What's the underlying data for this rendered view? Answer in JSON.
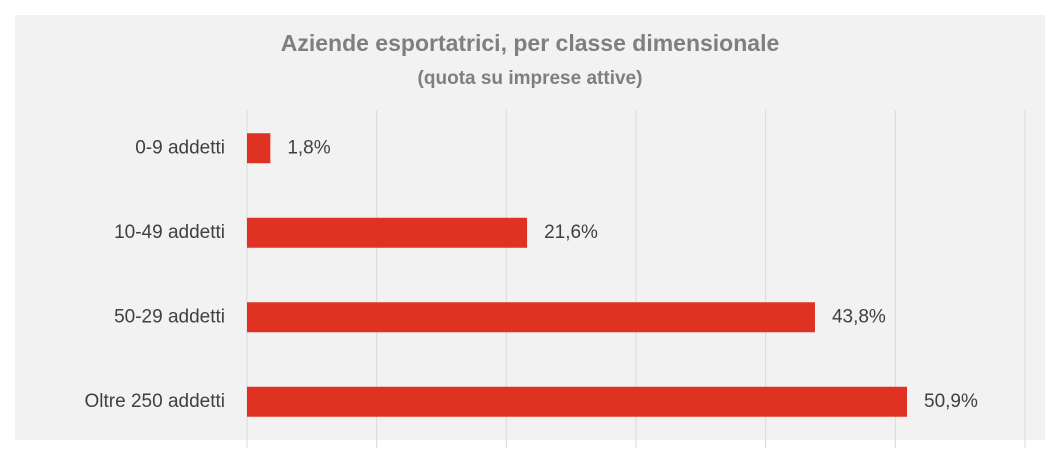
{
  "chart_data": {
    "type": "hbar",
    "title": "Aziende esportatrici, per classe dimensionale",
    "subtitle": "(quota su imprese attive)",
    "categories": [
      "0-9 addetti",
      "10-49 addetti",
      "50-29 addetti",
      "Oltre 250 addetti"
    ],
    "values": [
      1.8,
      21.6,
      43.8,
      50.9
    ],
    "value_labels": [
      "1,8%",
      "21,6%",
      "43,8%",
      "50,9%"
    ],
    "color": "#e03223",
    "xlim": [
      0,
      60
    ],
    "xticks": [
      0,
      10,
      20,
      30,
      40,
      50,
      60
    ],
    "grid": true
  }
}
